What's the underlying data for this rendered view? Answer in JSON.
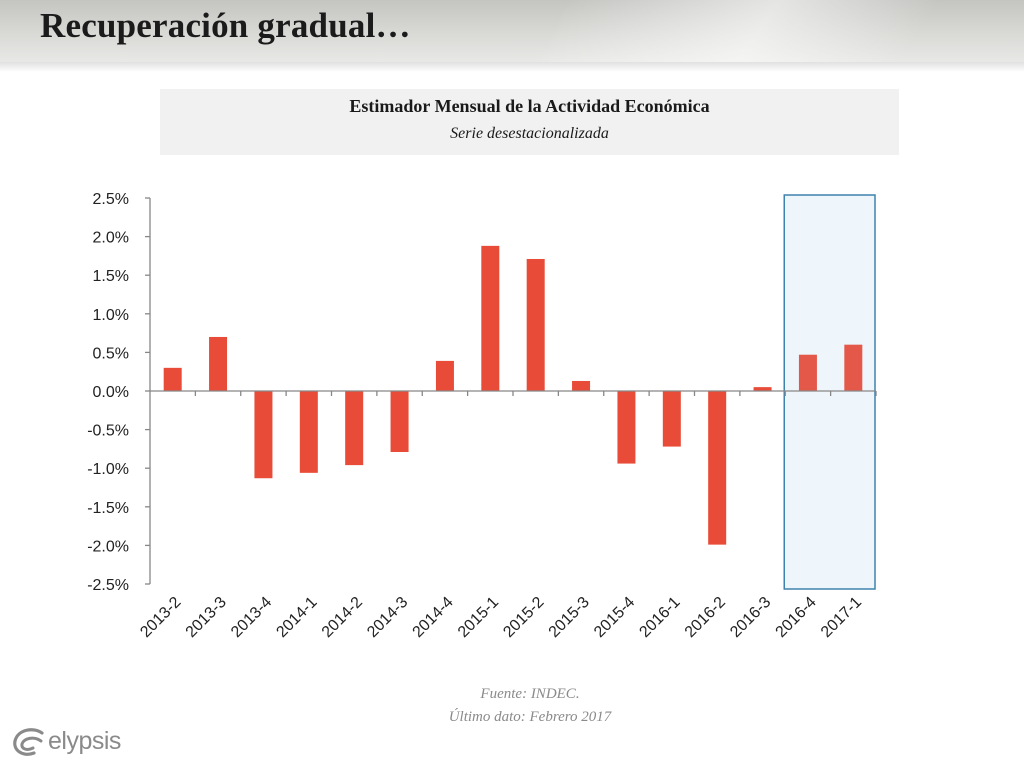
{
  "slide": {
    "title": "Recuperación gradual…"
  },
  "chart_header": {
    "title": "Estimador Mensual de la Actividad Económica",
    "subtitle": "Serie desestacionalizada"
  },
  "chart_data": {
    "type": "bar",
    "title": "Estimador Mensual de la Actividad Económica",
    "subtitle": "Serie desestacionalizada",
    "xlabel": "",
    "ylabel": "",
    "categories": [
      "2013-2",
      "2013-3",
      "2013-4",
      "2014-1",
      "2014-2",
      "2014-3",
      "2014-4",
      "2015-1",
      "2015-2",
      "2015-3",
      "2015-4",
      "2016-1",
      "2016-2",
      "2016-3",
      "2016-4",
      "2017-1"
    ],
    "values": [
      0.3,
      0.7,
      -1.13,
      -1.06,
      -0.96,
      -0.79,
      0.39,
      1.88,
      1.71,
      0.13,
      -0.94,
      -0.72,
      -1.99,
      0.05,
      0.47,
      0.6
    ],
    "unit": "%",
    "ylim": [
      -2.5,
      2.5
    ],
    "yticks": [
      "2.5%",
      "2.0%",
      "1.5%",
      "1.0%",
      "0.5%",
      "0.0%",
      "-0.5%",
      "-1.0%",
      "-1.5%",
      "-2.0%",
      "-2.5%"
    ],
    "ytick_values": [
      2.5,
      2.0,
      1.5,
      1.0,
      0.5,
      0.0,
      -0.5,
      -1.0,
      -1.5,
      -2.0,
      -2.5
    ],
    "grid": false,
    "legend": "none",
    "highlight_range": [
      "2016-4",
      "2017-1"
    ],
    "colors": {
      "bar": "#e84b37",
      "bar_highlighted": "#e4584a",
      "highlight_fill": "#eef5fb",
      "highlight_border": "#3f82ad",
      "axis": "#878787",
      "tick_text": "#222222"
    }
  },
  "footer": {
    "source": "Fuente: INDEC.",
    "last_data": "Último dato: Febrero 2017"
  },
  "logo": {
    "text": "elypsis",
    "icon": "elypsis-swirl-icon"
  }
}
